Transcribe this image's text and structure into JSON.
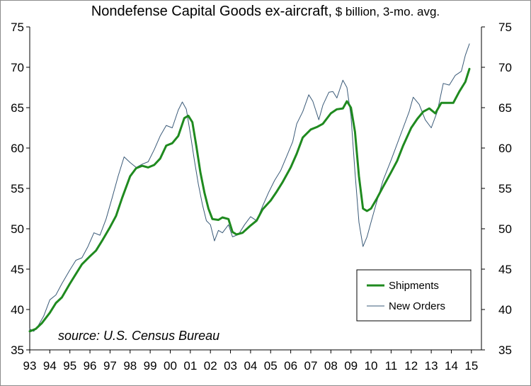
{
  "title_main": "Nondefense Capital Goods ex-aircraft,",
  "title_sub": " $ billion, 3-mo. avg.",
  "source": "source: U.S. Census Bureau",
  "chart_data": {
    "type": "line",
    "title": "Nondefense Capital Goods ex-aircraft, $ billion, 3-mo. avg.",
    "xlabel": "",
    "ylabel": "",
    "x_range": [
      1993,
      2015.5
    ],
    "ylim": [
      35,
      75
    ],
    "y_ticks": [
      35,
      40,
      45,
      50,
      55,
      60,
      65,
      70,
      75
    ],
    "x_tick_labels": [
      "93",
      "94",
      "95",
      "96",
      "97",
      "98",
      "99",
      "00",
      "01",
      "02",
      "03",
      "04",
      "05",
      "06",
      "07",
      "08",
      "09",
      "10",
      "11",
      "12",
      "13",
      "14",
      "15"
    ],
    "x_tick_years": [
      1993,
      1994,
      1995,
      1996,
      1997,
      1998,
      1999,
      2000,
      2001,
      2002,
      2003,
      2004,
      2005,
      2006,
      2007,
      2008,
      2009,
      2010,
      2011,
      2012,
      2013,
      2014,
      2015
    ],
    "grid": false,
    "legend_position": "bottom-right",
    "series": [
      {
        "name": "Shipments",
        "color": "#1f8a1f",
        "points": [
          [
            1993.0,
            37.3
          ],
          [
            1993.3,
            37.6
          ],
          [
            1993.6,
            38.3
          ],
          [
            1994.0,
            39.6
          ],
          [
            1994.3,
            40.8
          ],
          [
            1994.6,
            41.5
          ],
          [
            1995.0,
            43.2
          ],
          [
            1995.3,
            44.4
          ],
          [
            1995.6,
            45.6
          ],
          [
            1996.0,
            46.6
          ],
          [
            1996.3,
            47.3
          ],
          [
            1996.6,
            48.5
          ],
          [
            1997.0,
            50.2
          ],
          [
            1997.3,
            51.6
          ],
          [
            1997.6,
            53.8
          ],
          [
            1998.0,
            56.5
          ],
          [
            1998.3,
            57.5
          ],
          [
            1998.6,
            57.8
          ],
          [
            1998.9,
            57.6
          ],
          [
            1999.2,
            57.9
          ],
          [
            1999.5,
            58.7
          ],
          [
            1999.8,
            60.3
          ],
          [
            2000.1,
            60.6
          ],
          [
            2000.4,
            61.5
          ],
          [
            2000.7,
            63.7
          ],
          [
            2000.9,
            64.0
          ],
          [
            2001.1,
            63.2
          ],
          [
            2001.3,
            60.2
          ],
          [
            2001.5,
            57.0
          ],
          [
            2001.7,
            54.5
          ],
          [
            2001.9,
            52.5
          ],
          [
            2002.1,
            51.2
          ],
          [
            2002.4,
            51.1
          ],
          [
            2002.6,
            51.4
          ],
          [
            2002.9,
            51.2
          ],
          [
            2003.1,
            49.6
          ],
          [
            2003.3,
            49.3
          ],
          [
            2003.6,
            49.5
          ],
          [
            2004.0,
            50.4
          ],
          [
            2004.3,
            51.0
          ],
          [
            2004.6,
            52.4
          ],
          [
            2005.0,
            53.5
          ],
          [
            2005.3,
            54.6
          ],
          [
            2005.6,
            55.8
          ],
          [
            2006.0,
            57.6
          ],
          [
            2006.3,
            59.3
          ],
          [
            2006.6,
            61.3
          ],
          [
            2007.0,
            62.3
          ],
          [
            2007.3,
            62.6
          ],
          [
            2007.6,
            63.0
          ],
          [
            2008.0,
            64.3
          ],
          [
            2008.3,
            64.8
          ],
          [
            2008.6,
            64.9
          ],
          [
            2008.8,
            65.8
          ],
          [
            2009.0,
            65.0
          ],
          [
            2009.2,
            62.0
          ],
          [
            2009.4,
            56.5
          ],
          [
            2009.6,
            52.5
          ],
          [
            2009.8,
            52.2
          ],
          [
            2010.0,
            52.5
          ],
          [
            2010.3,
            53.8
          ],
          [
            2010.6,
            55.2
          ],
          [
            2011.0,
            57.0
          ],
          [
            2011.3,
            58.4
          ],
          [
            2011.6,
            60.3
          ],
          [
            2012.0,
            62.5
          ],
          [
            2012.3,
            63.6
          ],
          [
            2012.6,
            64.5
          ],
          [
            2012.9,
            64.9
          ],
          [
            2013.2,
            64.3
          ],
          [
            2013.5,
            65.6
          ],
          [
            2013.8,
            65.6
          ],
          [
            2014.1,
            65.6
          ],
          [
            2014.4,
            67.0
          ],
          [
            2014.7,
            68.2
          ],
          [
            2014.9,
            69.8
          ]
        ]
      },
      {
        "name": "New Orders",
        "color": "#3a5a78",
        "points": [
          [
            1993.0,
            37.6
          ],
          [
            1993.2,
            37.3
          ],
          [
            1993.4,
            37.9
          ],
          [
            1993.7,
            39.2
          ],
          [
            1994.0,
            41.2
          ],
          [
            1994.3,
            41.8
          ],
          [
            1994.6,
            43.2
          ],
          [
            1995.0,
            44.9
          ],
          [
            1995.3,
            46.1
          ],
          [
            1995.6,
            46.4
          ],
          [
            1995.9,
            47.8
          ],
          [
            1996.2,
            49.5
          ],
          [
            1996.5,
            49.2
          ],
          [
            1996.8,
            51.2
          ],
          [
            1997.1,
            53.8
          ],
          [
            1997.4,
            56.5
          ],
          [
            1997.7,
            58.9
          ],
          [
            1998.0,
            58.2
          ],
          [
            1998.3,
            57.6
          ],
          [
            1998.6,
            58.0
          ],
          [
            1998.9,
            58.3
          ],
          [
            1999.2,
            59.8
          ],
          [
            1999.5,
            61.5
          ],
          [
            1999.8,
            62.8
          ],
          [
            2000.1,
            62.5
          ],
          [
            2000.4,
            64.7
          ],
          [
            2000.6,
            65.7
          ],
          [
            2000.8,
            64.8
          ],
          [
            2001.0,
            61.8
          ],
          [
            2001.2,
            58.5
          ],
          [
            2001.4,
            55.5
          ],
          [
            2001.6,
            53.0
          ],
          [
            2001.8,
            51.0
          ],
          [
            2002.0,
            50.5
          ],
          [
            2002.2,
            48.5
          ],
          [
            2002.4,
            49.8
          ],
          [
            2002.6,
            49.5
          ],
          [
            2002.9,
            50.5
          ],
          [
            2003.1,
            49.0
          ],
          [
            2003.4,
            49.3
          ],
          [
            2003.7,
            50.5
          ],
          [
            2004.0,
            51.5
          ],
          [
            2004.3,
            51.0
          ],
          [
            2004.6,
            52.8
          ],
          [
            2004.9,
            54.5
          ],
          [
            2005.2,
            56.0
          ],
          [
            2005.5,
            57.2
          ],
          [
            2005.8,
            59.0
          ],
          [
            2006.1,
            60.8
          ],
          [
            2006.3,
            63.0
          ],
          [
            2006.6,
            64.5
          ],
          [
            2006.9,
            66.6
          ],
          [
            2007.1,
            65.8
          ],
          [
            2007.4,
            63.5
          ],
          [
            2007.6,
            65.3
          ],
          [
            2007.9,
            66.9
          ],
          [
            2008.1,
            67.0
          ],
          [
            2008.3,
            66.2
          ],
          [
            2008.6,
            68.4
          ],
          [
            2008.8,
            67.5
          ],
          [
            2009.0,
            64.0
          ],
          [
            2009.2,
            57.0
          ],
          [
            2009.4,
            50.8
          ],
          [
            2009.6,
            47.8
          ],
          [
            2009.8,
            49.0
          ],
          [
            2010.0,
            50.8
          ],
          [
            2010.3,
            53.5
          ],
          [
            2010.6,
            56.0
          ],
          [
            2011.0,
            58.5
          ],
          [
            2011.3,
            60.5
          ],
          [
            2011.6,
            62.5
          ],
          [
            2011.9,
            64.5
          ],
          [
            2012.1,
            66.3
          ],
          [
            2012.4,
            65.4
          ],
          [
            2012.7,
            63.5
          ],
          [
            2013.0,
            62.5
          ],
          [
            2013.3,
            64.5
          ],
          [
            2013.6,
            68.0
          ],
          [
            2013.9,
            67.8
          ],
          [
            2014.2,
            69.0
          ],
          [
            2014.5,
            69.5
          ],
          [
            2014.7,
            71.5
          ],
          [
            2014.9,
            72.9
          ]
        ]
      }
    ]
  }
}
